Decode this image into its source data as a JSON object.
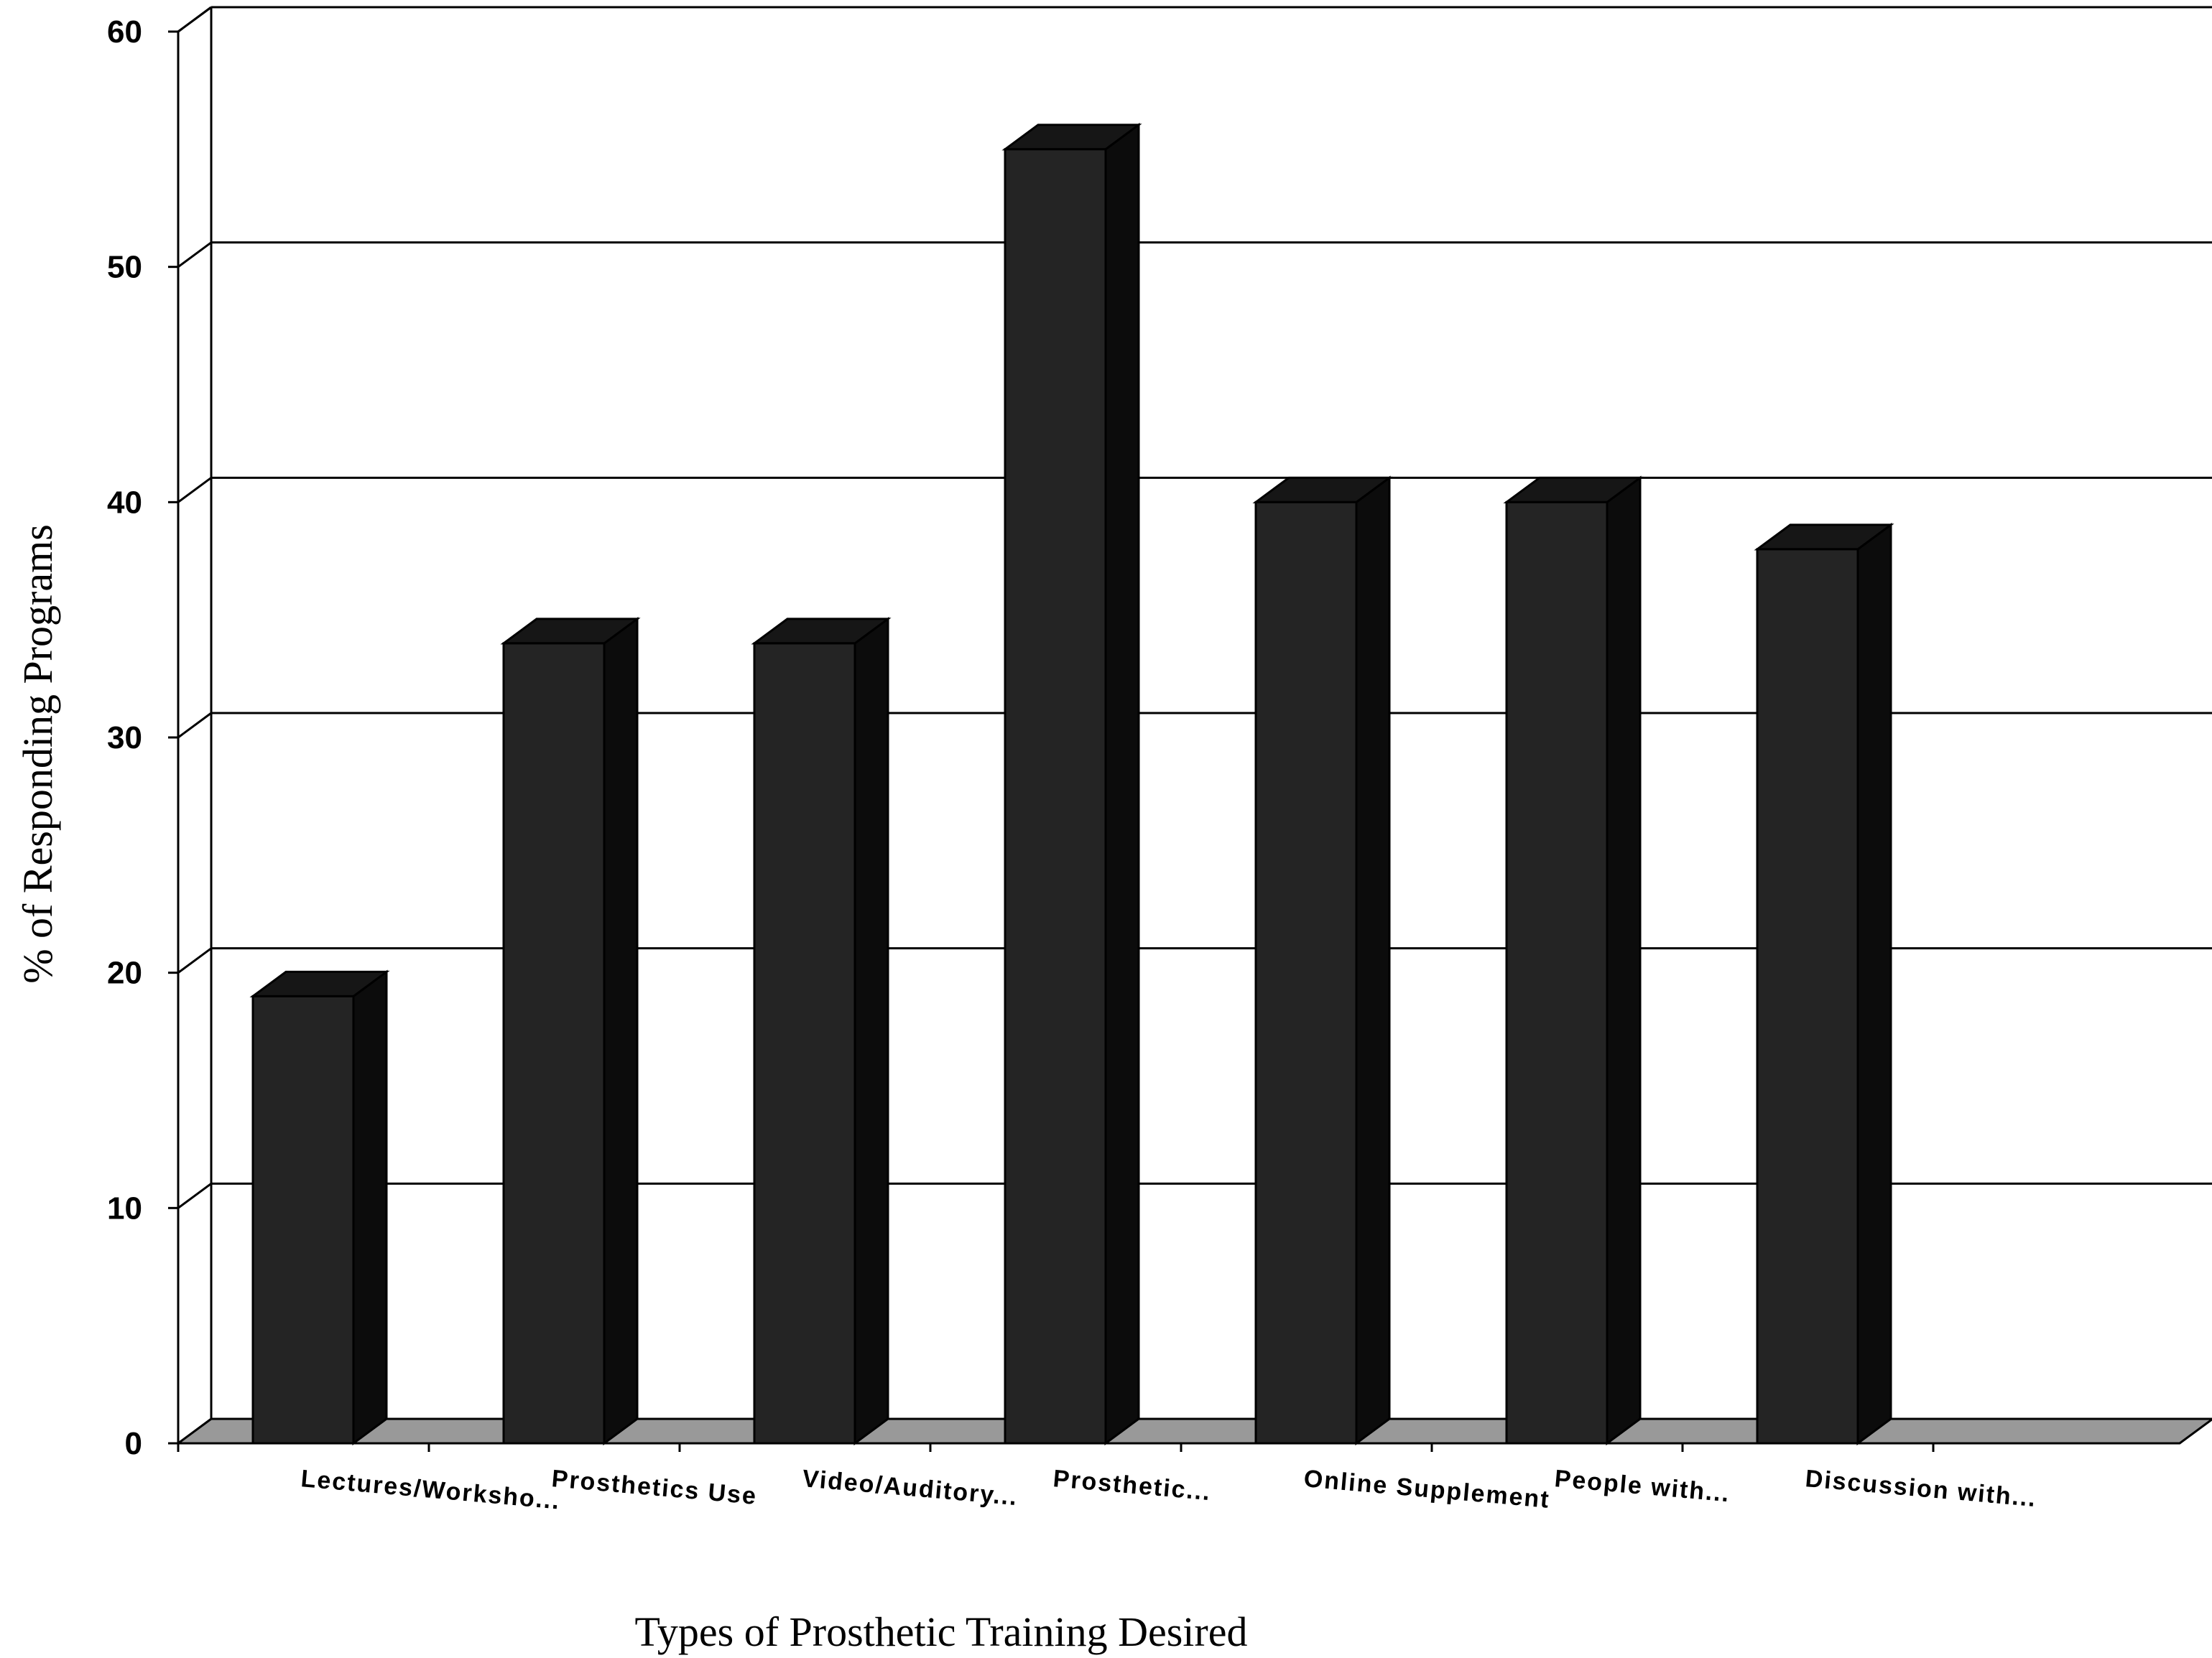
{
  "chart_data": {
    "type": "bar",
    "style": "3d",
    "categories": [
      "Lectures/Worksho...",
      "Prosthetics Use",
      "Video/Auditory...",
      "Prosthetic...",
      "Online Supplement",
      "People with...",
      "Discussion with..."
    ],
    "values": [
      19,
      34,
      34,
      55,
      40,
      40,
      38
    ],
    "y_ticks": [
      "0",
      "10",
      "20",
      "30",
      "40",
      "50",
      "60"
    ],
    "title": "",
    "xlabel": "Types of Prosthetic Training Desired",
    "ylabel": "% of Responding Programs",
    "ylim": [
      0,
      60
    ],
    "grid": true,
    "legend": "none",
    "colors": {
      "bar_front": "#242424",
      "bar_side": "#0c0c0c",
      "bar_top": "#161616",
      "floor": "#999999",
      "grid": "#000000"
    }
  }
}
